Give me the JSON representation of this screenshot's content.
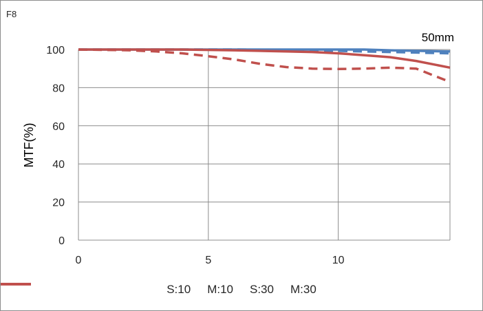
{
  "corner_label": "F8",
  "chart_data": {
    "type": "line",
    "annotation": "50mm",
    "xlabel": "",
    "ylabel": "MTF(%)",
    "xlim": [
      0,
      14.3
    ],
    "ylim": [
      0,
      100
    ],
    "x_ticks": [
      "0",
      "5",
      "10"
    ],
    "y_ticks": [
      "0",
      "20",
      "40",
      "60",
      "80",
      "100"
    ],
    "grid": "vertical lines at 0, 5, 10, 14.3 and horizontal lines at every 20",
    "legend_position": "bottom",
    "series": [
      {
        "name": "S:10",
        "color": "#4f81bd",
        "dash": false,
        "x": [
          0,
          2,
          4,
          6,
          8,
          10,
          11,
          12,
          13,
          14.3
        ],
        "y": [
          100,
          100,
          100,
          100,
          100,
          100,
          100,
          99.6,
          99.3,
          99
        ]
      },
      {
        "name": "M:10",
        "color": "#4f81bd",
        "dash": true,
        "x": [
          0,
          2,
          4,
          6,
          8,
          10,
          11,
          12,
          13,
          14.3
        ],
        "y": [
          100,
          100,
          100,
          100,
          99.7,
          99.3,
          99,
          98.7,
          98.4,
          98
        ]
      },
      {
        "name": "S:30",
        "color": "#c0504d",
        "dash": false,
        "x": [
          0,
          2,
          4,
          6,
          8,
          9,
          10,
          11,
          12,
          13,
          14.3
        ],
        "y": [
          100,
          100,
          100,
          99.6,
          99,
          98.7,
          98,
          97,
          96,
          94,
          90.5
        ]
      },
      {
        "name": "M:30",
        "color": "#c0504d",
        "dash": true,
        "x": [
          0,
          2,
          3,
          4,
          5,
          6,
          7,
          8,
          9,
          10,
          11,
          12,
          13,
          14.3
        ],
        "y": [
          100,
          99.6,
          99,
          98,
          96.5,
          94.8,
          92.5,
          90.8,
          90,
          89.8,
          90,
          90.5,
          90,
          83
        ]
      }
    ]
  }
}
